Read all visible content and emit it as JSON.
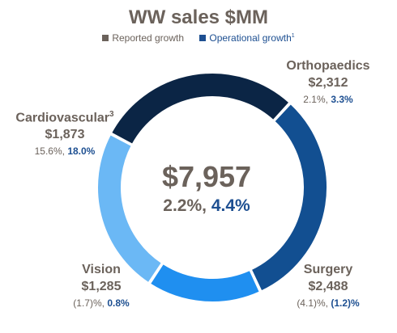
{
  "chart_data": {
    "type": "pie",
    "title": "WW sales $MM",
    "legend": [
      {
        "label": "Reported growth",
        "color": "#6b625b"
      },
      {
        "label": "Operational growth",
        "sup": "1",
        "color": "#1d4f91"
      }
    ],
    "center": {
      "total": "$7,957",
      "reported": "2.2%,",
      "operational": "4.4%"
    },
    "segments": [
      {
        "name": "Orthopaedics",
        "sup": "",
        "value": 2312,
        "value_label": "$2,312",
        "reported": "2.1%,",
        "operational": "3.3%",
        "color": "#0b2545"
      },
      {
        "name": "Surgery",
        "sup": "",
        "value": 2488,
        "value_label": "$2,488",
        "reported": "(4.1)%,",
        "operational": "(1.2)%",
        "color": "#124f91"
      },
      {
        "name": "Vision",
        "sup": "",
        "value": 1285,
        "value_label": "$1,285",
        "reported": "(1.7)%,",
        "operational": "0.8%",
        "color": "#1f8ff0"
      },
      {
        "name": "Cardiovascular",
        "sup": "3",
        "value": 1873,
        "value_label": "$1,873",
        "reported": "15.6%,",
        "operational": "18.0%",
        "color": "#6bb8f5"
      }
    ]
  }
}
